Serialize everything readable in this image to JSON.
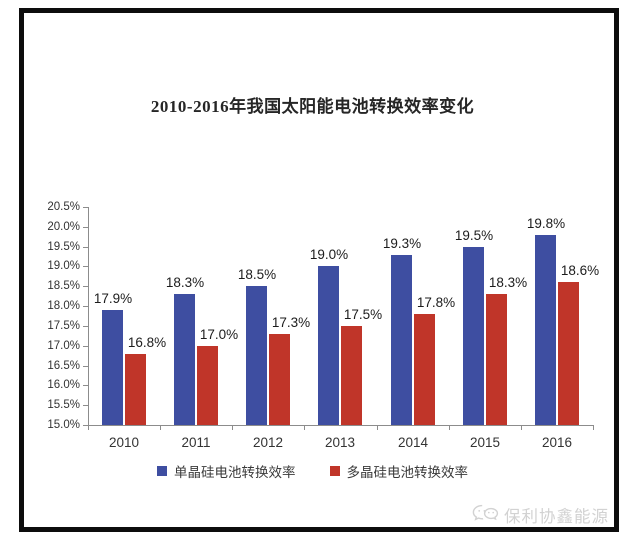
{
  "title": "2010-2016年我国太阳能电池转换效率变化",
  "watermark": {
    "text": "保利协鑫能源",
    "icon": "wechat-logo-icon"
  },
  "colors": {
    "series1_blue": "#3E4EA1",
    "series2_red": "#C03529",
    "axis": "#8c8c8c",
    "frame": "#0d0d0d",
    "value_label": "#1c1c1c",
    "watermark": "#d2d2d2"
  },
  "chart_data": {
    "type": "bar",
    "title": "2010-2016年我国太阳能电池转换效率变化",
    "categories": [
      "2010",
      "2011",
      "2012",
      "2013",
      "2014",
      "2015",
      "2016"
    ],
    "series": [
      {
        "name": "单晶硅电池转换效率",
        "color": "#3E4EA1",
        "values": [
          17.9,
          18.3,
          18.5,
          19.0,
          19.3,
          19.5,
          19.8
        ],
        "labels": [
          "17.9%",
          "18.3%",
          "18.5%",
          "19.0%",
          "19.3%",
          "19.5%",
          "19.8%"
        ]
      },
      {
        "name": "多晶硅电池转换效率",
        "color": "#C03529",
        "values": [
          16.8,
          17.0,
          17.3,
          17.5,
          17.8,
          18.3,
          18.6
        ],
        "labels": [
          "16.8%",
          "17.0%",
          "17.3%",
          "17.5%",
          "17.8%",
          "18.3%",
          "18.6%"
        ]
      }
    ],
    "xlabel": "",
    "ylabel": "",
    "ylim": [
      15.0,
      20.5
    ],
    "ytick_step": 0.5,
    "ytick_labels": [
      "20.5%",
      "20.0%",
      "19.5%",
      "19.0%",
      "18.5%",
      "18.0%",
      "17.5%",
      "17.0%",
      "16.5%",
      "16.0%",
      "15.5%",
      "15.0%"
    ],
    "grid": false,
    "legend_position": "bottom",
    "value_labels_visible": true
  }
}
